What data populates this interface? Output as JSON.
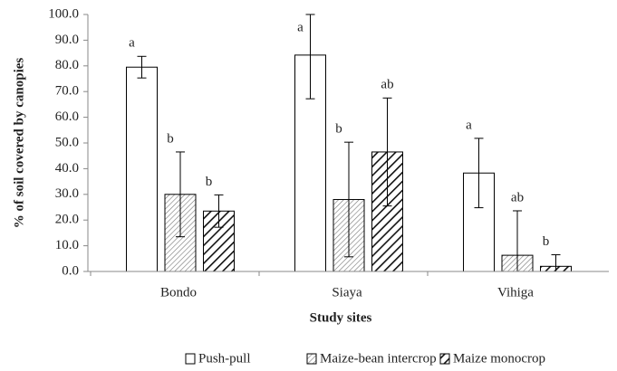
{
  "chart_data": {
    "type": "bar",
    "y_label": "% of soil covered by canopies",
    "x_label": "Study sites",
    "categories": [
      "Bondo",
      "Siaya",
      "Vihiga"
    ],
    "series": [
      {
        "name": "Push-pull",
        "color": "#ffffff",
        "pattern": "none",
        "values": [
          79.5,
          84.2,
          38.3
        ],
        "errors": [
          4.2,
          17,
          13.5
        ],
        "labels": [
          "a",
          "a",
          "a"
        ]
      },
      {
        "name": "Maize-bean intercrop",
        "color": "#ffffff",
        "pattern": "thin-hatch",
        "values": [
          30,
          28,
          6.3
        ],
        "errors": [
          16.5,
          22.3,
          17.3
        ],
        "labels": [
          "b",
          "b",
          "ab"
        ]
      },
      {
        "name": "Maize monocrop",
        "color": "#ffffff",
        "pattern": "bold-hatch",
        "values": [
          23.5,
          46.5,
          2
        ],
        "errors": [
          6.3,
          21,
          4.5
        ],
        "labels": [
          "b",
          "ab",
          "b"
        ]
      }
    ],
    "ylim": [
      0,
      100
    ],
    "yticks": [
      {
        "value": 0,
        "label": "0.0"
      },
      {
        "value": 10,
        "label": "10.0"
      },
      {
        "value": 20,
        "label": "20.0"
      },
      {
        "value": 30,
        "label": "30.0"
      },
      {
        "value": 40,
        "label": "40.0"
      },
      {
        "value": 50,
        "label": "50.0"
      },
      {
        "value": 60,
        "label": "60.0"
      },
      {
        "value": 70,
        "label": "70.0"
      },
      {
        "value": 80,
        "label": "80.0"
      },
      {
        "value": 90,
        "label": "90.0"
      },
      {
        "value": 100,
        "label": "100.0"
      }
    ],
    "legend": "bottom"
  }
}
